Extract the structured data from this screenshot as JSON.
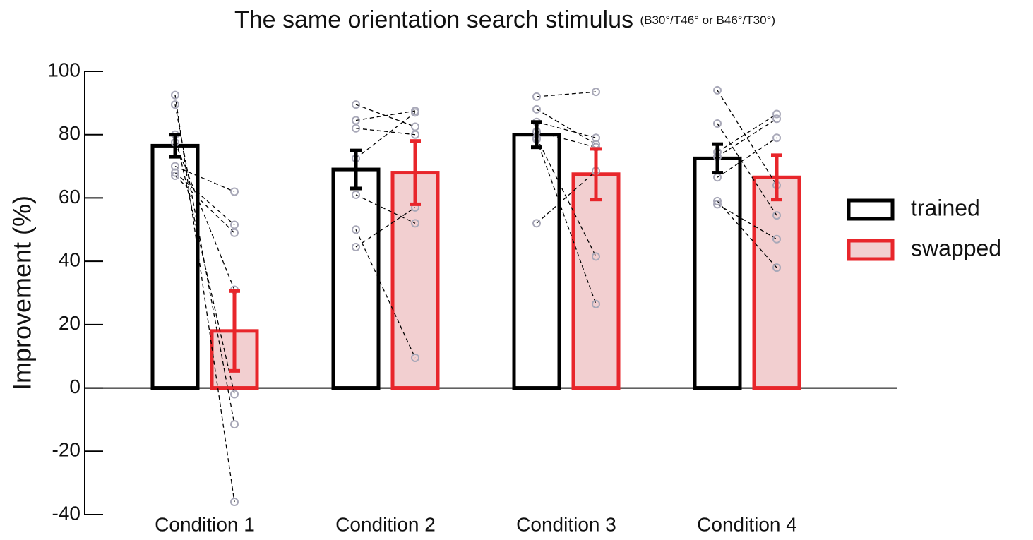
{
  "chart_data": {
    "type": "bar",
    "title": "The same orientation search stimulus",
    "subtitle": "(B30°/T46° or B46°/T30°)",
    "y_label": "Improvement (%)",
    "categories": [
      "Condition 1",
      "Condition 2",
      "Condition 3",
      "Condition 4"
    ],
    "ylim": [
      -40,
      100
    ],
    "yticks": [
      -40,
      -20,
      0,
      20,
      40,
      60,
      80,
      100
    ],
    "legend": "right",
    "point_color": "#a8a8b8",
    "series": [
      {
        "name": "trained",
        "color": "#000000",
        "fill": "#ffffff",
        "values": [
          76.5,
          69,
          80,
          72.5
        ],
        "errors": [
          3.5,
          6,
          4,
          4.5
        ],
        "subjects": [
          [
            92.5,
            89.5,
            80,
            77.5,
            70,
            68,
            67
          ],
          [
            89.5,
            84.5,
            82,
            72.5,
            61,
            50,
            44.5
          ],
          [
            92,
            88,
            84,
            81,
            79,
            78.5,
            52
          ],
          [
            94,
            83.5,
            74.5,
            73,
            66.5,
            59,
            58
          ]
        ]
      },
      {
        "name": "swapped",
        "color": "#e8262b",
        "fill": "#f2cfd0",
        "values": [
          18,
          68,
          67.5,
          66.5
        ],
        "errors": [
          12.6,
          10,
          8,
          7
        ],
        "subjects": [
          [
            -36,
            -11.5,
            -2,
            31,
            62,
            51.5,
            49
          ],
          [
            82.5,
            87.5,
            80,
            87,
            52,
            9.5,
            57
          ],
          [
            93.5,
            77,
            79,
            76,
            41.5,
            26.5,
            68.5
          ],
          [
            64,
            54.5,
            86.5,
            85,
            79,
            38,
            47
          ]
        ]
      }
    ]
  }
}
